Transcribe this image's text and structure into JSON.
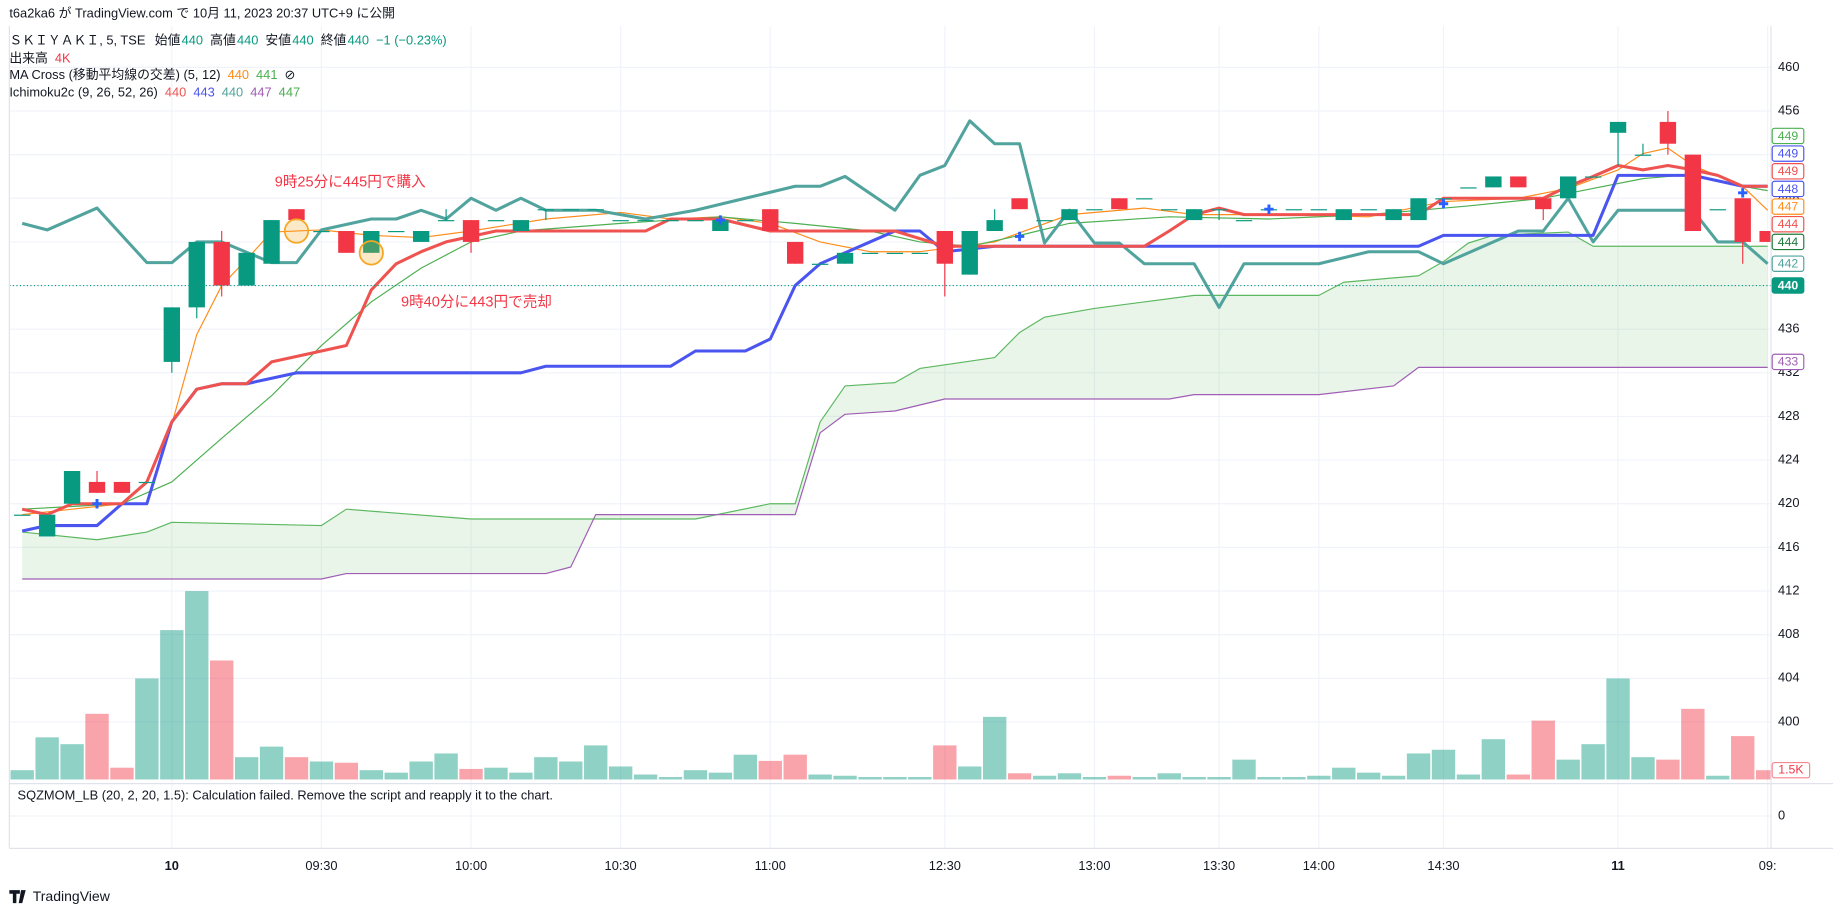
{
  "header": {
    "published": "t6a2ka6 が TradingView.com で 10月 11, 2023 20:37 UTC+9 に公開"
  },
  "chart_data": {
    "type": "candlestick",
    "symbol": "ＳＫＩＹＡＫＩ, 5, TSE",
    "ohlc_legend": [
      {
        "label": "始値",
        "value": 440
      },
      {
        "label": "高値",
        "value": 440
      },
      {
        "label": "安値",
        "value": 440
      },
      {
        "label": "終値",
        "value": 440
      }
    ],
    "change": "−1 (−0.23%)",
    "volume_legend": {
      "label": "出来高",
      "value": "4K"
    },
    "ma_legend": {
      "label": "MA Cross (移動平均線の交差) (5, 12)",
      "values": [
        {
          "value": 440,
          "color": "#ff8c1a"
        },
        {
          "value": 441,
          "color": "#4caf50"
        }
      ],
      "icon": "⊘"
    },
    "ichimoku_legend": {
      "label": "Ichimoku2c (9, 26, 52, 26)",
      "values": [
        {
          "value": 440,
          "color": "#ef5350"
        },
        {
          "value": 443,
          "color": "#4a55f0"
        },
        {
          "value": 440,
          "color": "#51a39d"
        },
        {
          "value": 447,
          "color": "#a05db5"
        },
        {
          "value": 447,
          "color": "#4caf50"
        }
      ]
    },
    "annotations": [
      {
        "text": "9時25分に445円で購入"
      },
      {
        "text": "9時40分に443円で売却"
      }
    ],
    "sqzmom": {
      "text": "SQZMOM_LB (20, 2, 20, 1.5): Calculation failed. Remove the script and reapply it to the chart.",
      "yticks": [
        0
      ]
    },
    "categories": [
      null,
      null,
      null,
      null,
      null,
      null,
      "10",
      null,
      null,
      null,
      null,
      null,
      "09:30",
      null,
      null,
      null,
      null,
      null,
      "10:00",
      null,
      null,
      null,
      null,
      null,
      "10:30",
      null,
      null,
      null,
      null,
      null,
      "11:00",
      null,
      null,
      null,
      null,
      null,
      null,
      "12:30",
      null,
      null,
      null,
      null,
      null,
      "13:00",
      null,
      null,
      null,
      null,
      "13:30",
      null,
      null,
      null,
      "14:00",
      null,
      null,
      null,
      null,
      "14:30",
      null,
      null,
      null,
      null,
      null,
      null,
      "11",
      null,
      null,
      null,
      null,
      null,
      "09:"
    ],
    "open": [
      419,
      417,
      420,
      422,
      422,
      422,
      433,
      438,
      444,
      440,
      442,
      447,
      445,
      445,
      443,
      445,
      444,
      446,
      446,
      446,
      445,
      447,
      447,
      447,
      446,
      446,
      446,
      446,
      445,
      446,
      447,
      444,
      442,
      442,
      443,
      443,
      443,
      445,
      441,
      445,
      448,
      446,
      446,
      447,
      448,
      448,
      447,
      446,
      447,
      446,
      447,
      447,
      447,
      446,
      447,
      446,
      446,
      448,
      449,
      449,
      450,
      448,
      448,
      450,
      454,
      452,
      455,
      452,
      447,
      448,
      445
    ],
    "high": [
      419,
      419,
      423,
      423,
      422,
      422,
      438,
      444,
      445,
      443,
      446,
      447,
      445,
      445,
      445,
      445,
      445,
      447,
      446,
      446,
      446,
      447,
      447,
      447,
      446,
      446,
      446,
      446,
      446,
      446,
      447,
      444,
      442,
      443,
      443,
      443,
      443,
      445,
      445,
      447,
      448,
      446,
      447,
      447,
      448,
      448,
      447,
      447,
      447,
      446,
      447,
      447,
      447,
      447,
      447,
      447,
      448,
      448,
      449,
      450,
      450,
      448,
      450,
      450,
      455,
      453,
      456,
      452,
      447,
      448,
      445
    ],
    "low": [
      419,
      417,
      420,
      421,
      421,
      422,
      432,
      437,
      439,
      440,
      442,
      446,
      445,
      443,
      443,
      445,
      444,
      446,
      443,
      446,
      445,
      446,
      447,
      447,
      446,
      446,
      446,
      446,
      445,
      446,
      445,
      442,
      442,
      442,
      443,
      443,
      443,
      439,
      441,
      445,
      447,
      446,
      446,
      447,
      447,
      448,
      447,
      446,
      446,
      446,
      447,
      447,
      447,
      446,
      447,
      446,
      446,
      448,
      449,
      449,
      449,
      446,
      448,
      450,
      451,
      452,
      452,
      445,
      447,
      442,
      444
    ],
    "close": [
      419,
      419,
      423,
      421,
      421,
      422,
      438,
      444,
      440,
      443,
      446,
      446,
      445,
      443,
      445,
      445,
      445,
      446,
      444,
      446,
      446,
      447,
      447,
      447,
      446,
      446,
      446,
      446,
      446,
      446,
      445,
      442,
      442,
      443,
      443,
      443,
      443,
      442,
      445,
      446,
      447,
      446,
      447,
      447,
      447,
      448,
      447,
      447,
      447,
      446,
      447,
      447,
      447,
      447,
      447,
      447,
      448,
      448,
      449,
      450,
      449,
      447,
      450,
      450,
      455,
      452,
      453,
      445,
      447,
      444,
      444
    ],
    "up_color": "#089981",
    "down_color": "#f23645",
    "volume": {
      "values": [
        1500,
        6800,
        5700,
        10600,
        1900,
        16300,
        24100,
        30400,
        19200,
        3600,
        5300,
        3600,
        2900,
        2700,
        1500,
        1100,
        2900,
        4200,
        1700,
        1900,
        1100,
        3600,
        2900,
        5500,
        2100,
        800,
        400,
        1500,
        1100,
        4000,
        3000,
        4000,
        800,
        600,
        400,
        400,
        400,
        5500,
        2100,
        10100,
        1000,
        600,
        1000,
        400,
        600,
        400,
        1000,
        400,
        400,
        3200,
        400,
        400,
        600,
        1900,
        1100,
        600,
        4200,
        4800,
        800,
        6500,
        800,
        9500,
        3200,
        5700,
        16300,
        3600,
        3200,
        11400,
        600,
        7000,
        1500
      ],
      "value_labels": [
        null,
        null,
        null,
        null,
        null,
        null,
        null,
        null,
        null,
        null,
        null,
        null,
        null,
        null,
        null,
        null,
        null,
        null,
        null,
        null,
        null,
        null,
        null,
        null,
        null,
        null,
        null,
        null,
        null,
        null,
        null,
        null,
        null,
        null,
        null,
        null,
        null,
        null,
        null,
        null,
        null,
        null,
        null,
        null,
        null,
        null,
        null,
        null,
        null,
        null,
        null,
        null,
        null,
        null,
        null,
        null,
        null,
        null,
        null,
        null,
        null,
        null,
        null,
        null,
        null,
        null,
        null,
        null,
        null,
        null,
        "1.5K"
      ]
    },
    "lines": [
      {
        "color": "#51a39d",
        "thick": true,
        "x": [
          0,
          1,
          3,
          5,
          6,
          7,
          8,
          10,
          11,
          12,
          14,
          15,
          16,
          17,
          18,
          19,
          20,
          21,
          23,
          25,
          27,
          29,
          31,
          32,
          33,
          35,
          36,
          37,
          38,
          39,
          40,
          41,
          42,
          43,
          44,
          45,
          47,
          48,
          49,
          52,
          54,
          56,
          57,
          60,
          61,
          62,
          63,
          64,
          65,
          67,
          68,
          69,
          70
        ],
        "values": [
          445.7,
          445.1,
          447.1,
          442.1,
          442.1,
          444,
          444,
          442.1,
          442.1,
          445.1,
          446.1,
          446.1,
          446.9,
          446.1,
          448,
          446.9,
          448,
          446.9,
          446.9,
          446.1,
          446.9,
          448,
          449.1,
          449.1,
          450,
          446.9,
          450.1,
          451,
          455.1,
          453,
          453,
          443.9,
          446.9,
          443.9,
          443.9,
          442,
          442,
          438,
          442,
          442,
          443.1,
          443.1,
          442,
          445,
          445,
          448,
          444,
          446.9,
          446.9,
          446.9,
          444,
          444,
          442
        ]
      },
      {
        "color": "#4a55f0",
        "thick": true,
        "x": [
          0,
          1,
          3,
          4,
          5,
          6,
          7,
          8,
          9,
          11,
          20,
          21,
          26,
          27,
          29,
          30,
          31,
          32,
          34,
          35,
          36,
          37,
          39,
          56,
          57,
          63,
          64,
          66,
          67,
          69,
          70
        ],
        "values": [
          417.5,
          418,
          418,
          420,
          420,
          427.5,
          430.5,
          431,
          431,
          432,
          432,
          432.6,
          432.6,
          434,
          434,
          435.1,
          440,
          442,
          444,
          445,
          445,
          443.1,
          443.6,
          443.6,
          444.6,
          444.6,
          450.1,
          450.1,
          450.1,
          449.1,
          449.1
        ]
      },
      {
        "color": "#ef5350",
        "thick": true,
        "x": [
          0,
          1,
          2,
          4,
          5,
          6,
          7,
          8,
          9,
          10,
          12,
          13,
          14,
          15,
          16,
          17,
          19,
          25,
          26,
          28,
          30,
          35,
          37,
          45,
          46,
          47,
          48,
          49,
          56,
          57,
          61,
          62,
          63,
          64,
          65,
          66,
          67,
          68,
          69,
          70
        ],
        "values": [
          419.5,
          419,
          420,
          420,
          422,
          427.5,
          430.5,
          431,
          431,
          433,
          434,
          434.5,
          439.6,
          442,
          443.1,
          444,
          445,
          445,
          446.1,
          446.1,
          445,
          445,
          443.6,
          443.6,
          445,
          446.5,
          447.1,
          446.5,
          446.5,
          448,
          448,
          449.1,
          450,
          451,
          450.6,
          451,
          450.6,
          450.1,
          449.1,
          449.1
        ]
      },
      {
        "color": "#ff8c1a",
        "thick": false,
        "x": [
          0,
          2,
          4,
          5,
          6,
          7,
          8,
          9,
          10,
          12,
          14,
          16,
          18,
          21,
          24,
          26,
          28,
          30,
          32,
          34,
          36,
          39,
          42,
          45,
          47,
          50,
          54,
          57,
          60,
          62,
          64,
          65,
          66,
          67,
          69,
          70
        ],
        "values": [
          419,
          419.5,
          420,
          421.9,
          427.3,
          435.5,
          440,
          442.4,
          444.9,
          445.1,
          444.6,
          444.4,
          445,
          446.1,
          446.7,
          446.1,
          446.3,
          445.7,
          444,
          443.1,
          443.1,
          444,
          446.5,
          447.1,
          446.5,
          446.5,
          446.3,
          447.7,
          448,
          448.9,
          450.6,
          452.1,
          452.6,
          451,
          449.1,
          446.9
        ]
      },
      {
        "color": "#4caf50",
        "thick": false,
        "x": [
          0,
          4,
          6,
          8,
          10,
          12,
          14,
          16,
          18,
          20,
          24,
          28,
          31,
          34,
          36,
          38,
          40,
          42,
          46,
          50,
          54,
          58,
          61,
          63,
          65,
          67,
          69,
          70
        ],
        "values": [
          419.5,
          420,
          422,
          426,
          429.9,
          434.5,
          438.5,
          441.6,
          444,
          445,
          445.7,
          446.3,
          445.7,
          445,
          444,
          443.6,
          444.6,
          445.7,
          446.3,
          446.1,
          446.5,
          447.3,
          448,
          448.9,
          449.8,
          450.2,
          449.1,
          448.7
        ]
      },
      {
        "color": "#5cb860",
        "thick": false,
        "x": [
          0,
          3,
          5,
          6,
          12,
          13,
          18,
          27,
          30,
          31,
          32,
          33,
          35,
          36,
          39,
          40,
          41,
          43,
          45,
          47,
          52,
          53,
          56,
          57,
          58,
          59,
          62,
          63,
          65,
          70
        ],
        "values": [
          417.4,
          416.7,
          417.4,
          418.3,
          418,
          419.5,
          418.6,
          418.6,
          420,
          420,
          427.5,
          430.8,
          431.1,
          432.4,
          433.4,
          435.7,
          437.1,
          437.9,
          438.5,
          439.1,
          439.1,
          440.3,
          440.9,
          442.2,
          443.9,
          444.6,
          444.9,
          443.6,
          443.6,
          443.6
        ]
      },
      {
        "color": "#a05db5",
        "thick": false,
        "x": [
          0,
          12,
          13,
          21,
          22,
          23,
          27,
          31,
          32,
          33,
          35,
          37,
          46,
          47,
          52,
          55,
          56,
          70
        ],
        "values": [
          413.1,
          413.1,
          413.6,
          413.6,
          414.2,
          419,
          419,
          419,
          426.5,
          428.2,
          428.5,
          429.6,
          429.6,
          430,
          430,
          430.8,
          432.5,
          432.5
        ]
      }
    ],
    "cloud_color": "rgba(76,175,80,0.13)",
    "markers": {
      "trades": {
        "x": [
          11,
          14
        ],
        "values": [
          445,
          443
        ],
        "color": "#f5a623"
      },
      "crosses": {
        "x": [
          3,
          28,
          40,
          50,
          57,
          69
        ],
        "values": [
          420,
          446,
          444.5,
          447,
          447.5,
          448.5
        ],
        "color": "#2962ff"
      }
    },
    "price_tags": [
      {
        "value": 449,
        "color": "#4caf50",
        "filled": false
      },
      {
        "value": 449,
        "color": "#4a55f0",
        "filled": false
      },
      {
        "value": 449,
        "color": "#ef5350",
        "filled": false
      },
      {
        "value": 448,
        "color": "#4a55f0",
        "filled": false
      },
      {
        "value": 447,
        "color": "#ff8c1a",
        "filled": false
      },
      {
        "value": 444,
        "color": "#ef5350",
        "filled": false
      },
      {
        "value": 444,
        "color": "#1e7b3a",
        "filled": false
      },
      {
        "value": 442,
        "color": "#51a39d",
        "filled": false
      },
      {
        "value": 440,
        "color": "#089981",
        "filled": true
      },
      {
        "value": 433,
        "color": "#a05db5",
        "filled": false
      }
    ],
    "ylim": [
      394.4,
      463.8
    ],
    "yticks": [
      400,
      404,
      408,
      412,
      416,
      420,
      424,
      428,
      432,
      436,
      440,
      444,
      448,
      452,
      456,
      460
    ],
    "grid": true
  },
  "footer": {
    "brand": "TradingView"
  }
}
